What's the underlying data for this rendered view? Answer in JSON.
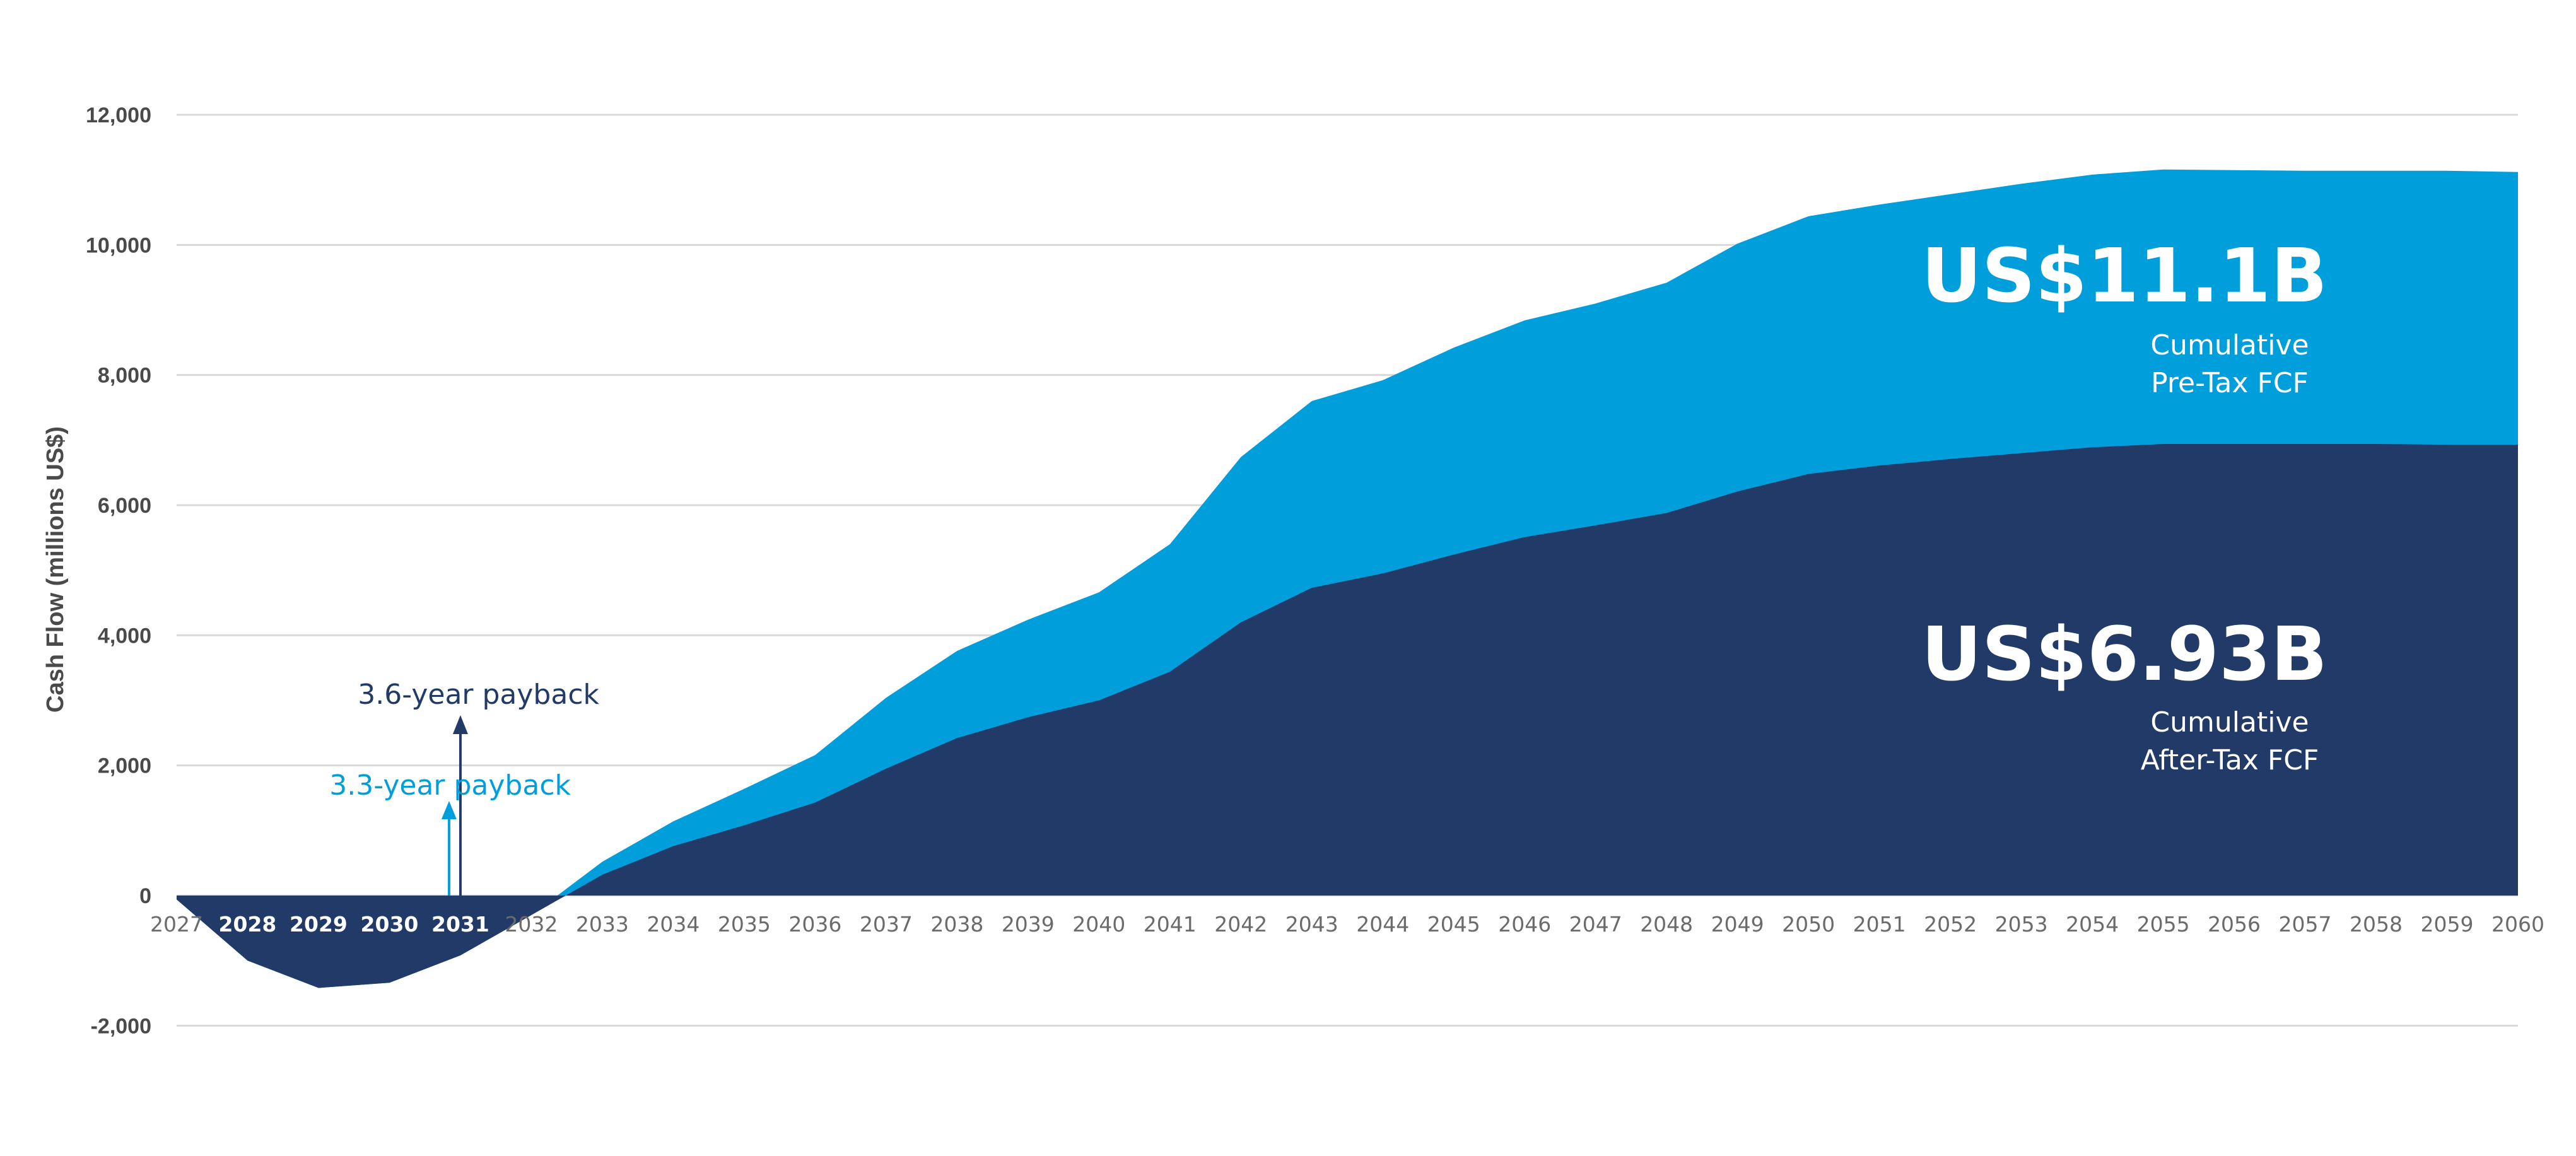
{
  "chart_data": {
    "type": "area",
    "ylabel": "Cash Flow (millions US$)",
    "ylim": [
      -2000,
      12000
    ],
    "yticks": [
      -2000,
      0,
      2000,
      4000,
      6000,
      8000,
      10000,
      12000
    ],
    "ytick_labels": [
      "-2,000",
      "0",
      "2,000",
      "4,000",
      "6,000",
      "8,000",
      "10,000",
      "12,000"
    ],
    "grid": true,
    "x": [
      "2027",
      "2028",
      "2029",
      "2030",
      "2031",
      "2032",
      "2033",
      "2034",
      "2035",
      "2036",
      "2037",
      "2038",
      "2039",
      "2040",
      "2041",
      "2042",
      "2043",
      "2044",
      "2045",
      "2046",
      "2047",
      "2048",
      "2049",
      "2050",
      "2051",
      "2052",
      "2053",
      "2054",
      "2055",
      "2056",
      "2057",
      "2058",
      "2059",
      "2060"
    ],
    "series": [
      {
        "color": "#009fdb",
        "values": [
          -60,
          -1000,
          -1420,
          -1340,
          -920,
          -300,
          520,
          1140,
          1640,
          2160,
          3040,
          3760,
          4240,
          4660,
          5400,
          6740,
          7600,
          7920,
          8420,
          8840,
          9100,
          9420,
          10020,
          10440,
          10620,
          10780,
          10940,
          11080,
          11160,
          11150,
          11140,
          11140,
          11140,
          11120
        ]
      },
      {
        "color": "#223a68",
        "values": [
          -60,
          -1000,
          -1420,
          -1340,
          -920,
          -300,
          320,
          760,
          1080,
          1430,
          1950,
          2420,
          2740,
          3000,
          3440,
          4200,
          4730,
          4950,
          5240,
          5510,
          5690,
          5880,
          6210,
          6480,
          6610,
          6710,
          6800,
          6890,
          6940,
          6940,
          6940,
          6940,
          6930,
          6930
        ]
      }
    ],
    "annotations": {
      "pretax_value": "US$11.1B",
      "pretax_line1": "Cumulative",
      "pretax_line2": "Pre-Tax FCF",
      "aftertax_value": "US$6.93B",
      "aftertax_line1": "Cumulative",
      "aftertax_line2": "After-Tax FCF",
      "payback_aftertax": "3.6-year payback",
      "payback_pretax": "3.3-year payback",
      "payback_aftertax_color": "#223a68",
      "payback_pretax_color": "#009fdb"
    }
  }
}
